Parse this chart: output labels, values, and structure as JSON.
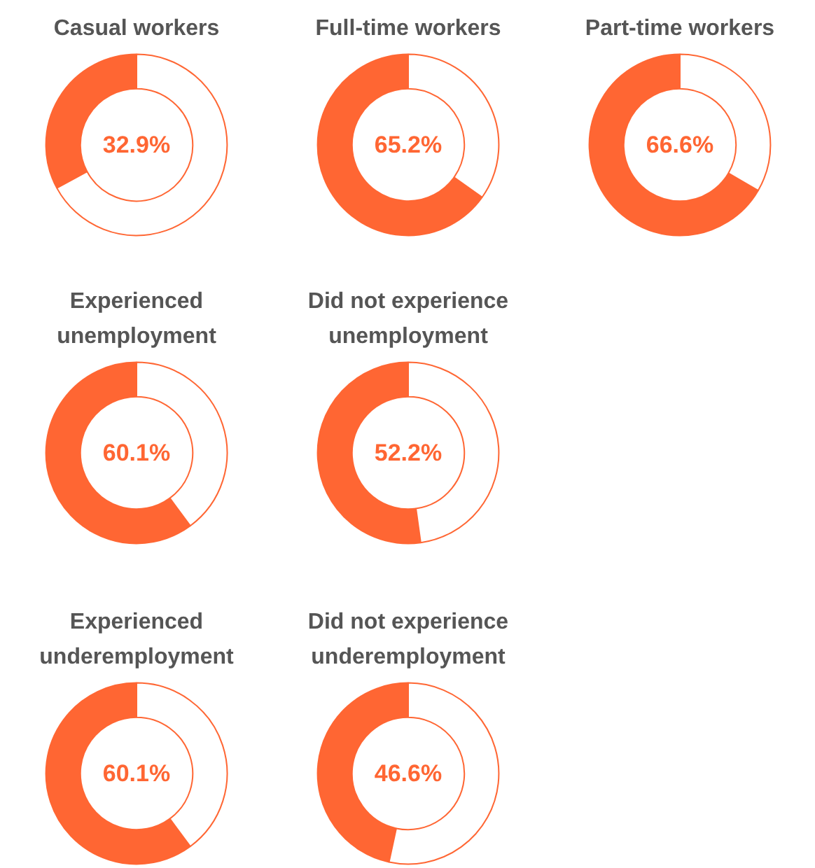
{
  "chart_data": [
    {
      "type": "donut",
      "title": "Casual workers",
      "categories": [
        null,
        null
      ],
      "values": [
        32.9,
        67.1
      ],
      "colors": [
        "#ff6633",
        "#ffffff"
      ],
      "annotations": [
        "32.9%"
      ]
    },
    {
      "type": "donut",
      "title": "Full-time workers",
      "categories": [
        null,
        null
      ],
      "values": [
        65.2,
        34.8
      ],
      "colors": [
        "#ff6633",
        "#ffffff"
      ],
      "annotations": [
        "65.2%"
      ]
    },
    {
      "type": "donut",
      "title": "Part-time workers",
      "categories": [
        null,
        null
      ],
      "values": [
        66.6,
        33.4
      ],
      "colors": [
        "#ff6633",
        "#ffffff"
      ],
      "annotations": [
        "66.6%"
      ]
    },
    {
      "type": "donut",
      "title": "Experienced\nunemployment",
      "categories": [
        null,
        null
      ],
      "values": [
        60.1,
        39.9
      ],
      "colors": [
        "#ff6633",
        "#ffffff"
      ],
      "annotations": [
        "60.1%"
      ]
    },
    {
      "type": "donut",
      "title": "Did not experience\nunemployment",
      "categories": [
        null,
        null
      ],
      "values": [
        52.2,
        47.8
      ],
      "colors": [
        "#ff6633",
        "#ffffff"
      ],
      "annotations": [
        "52.2%"
      ]
    },
    {
      "type": "donut",
      "title": "Experienced\nunderemployment",
      "categories": [
        null,
        null
      ],
      "values": [
        60.1,
        39.9
      ],
      "colors": [
        "#ff6633",
        "#ffffff"
      ],
      "annotations": [
        "60.1%"
      ]
    },
    {
      "type": "donut",
      "title": "Did not experience\nunderemployment",
      "categories": [
        null,
        null
      ],
      "values": [
        46.6,
        53.4
      ],
      "colors": [
        "#ff6633",
        "#ffffff"
      ],
      "annotations": [
        "46.6%"
      ]
    }
  ]
}
